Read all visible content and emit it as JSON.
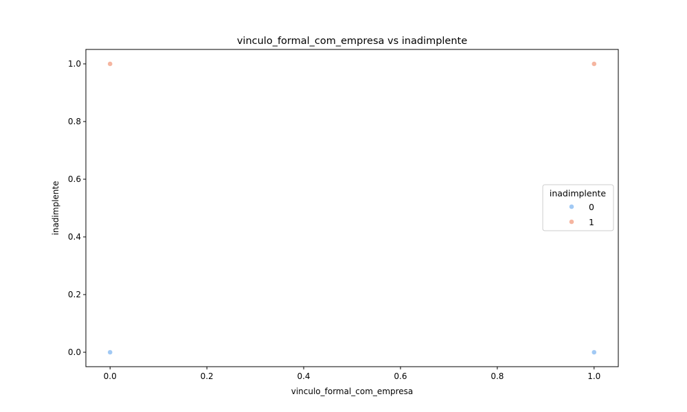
{
  "chart_data": {
    "type": "scatter",
    "title": "vinculo_formal_com_empresa vs inadimplente",
    "xlabel": "vinculo_formal_com_empresa",
    "ylabel": "inadimplente",
    "xlim": [
      -0.05,
      1.05
    ],
    "ylim": [
      -0.05,
      1.05
    ],
    "xticks": [
      "0.0",
      "0.2",
      "0.4",
      "0.6",
      "0.8",
      "1.0"
    ],
    "yticks": [
      "0.0",
      "0.2",
      "0.4",
      "0.6",
      "0.8",
      "1.0"
    ],
    "grid": false,
    "legend": {
      "title": "inadimplente",
      "placement": "center-right"
    },
    "series": [
      {
        "name": "0",
        "color": "#a1c9f4",
        "points": [
          {
            "x": 0,
            "y": 0
          },
          {
            "x": 1,
            "y": 0
          }
        ]
      },
      {
        "name": "1",
        "color": "#f5b5a0",
        "points": [
          {
            "x": 0,
            "y": 1
          },
          {
            "x": 1,
            "y": 1
          }
        ]
      }
    ]
  }
}
